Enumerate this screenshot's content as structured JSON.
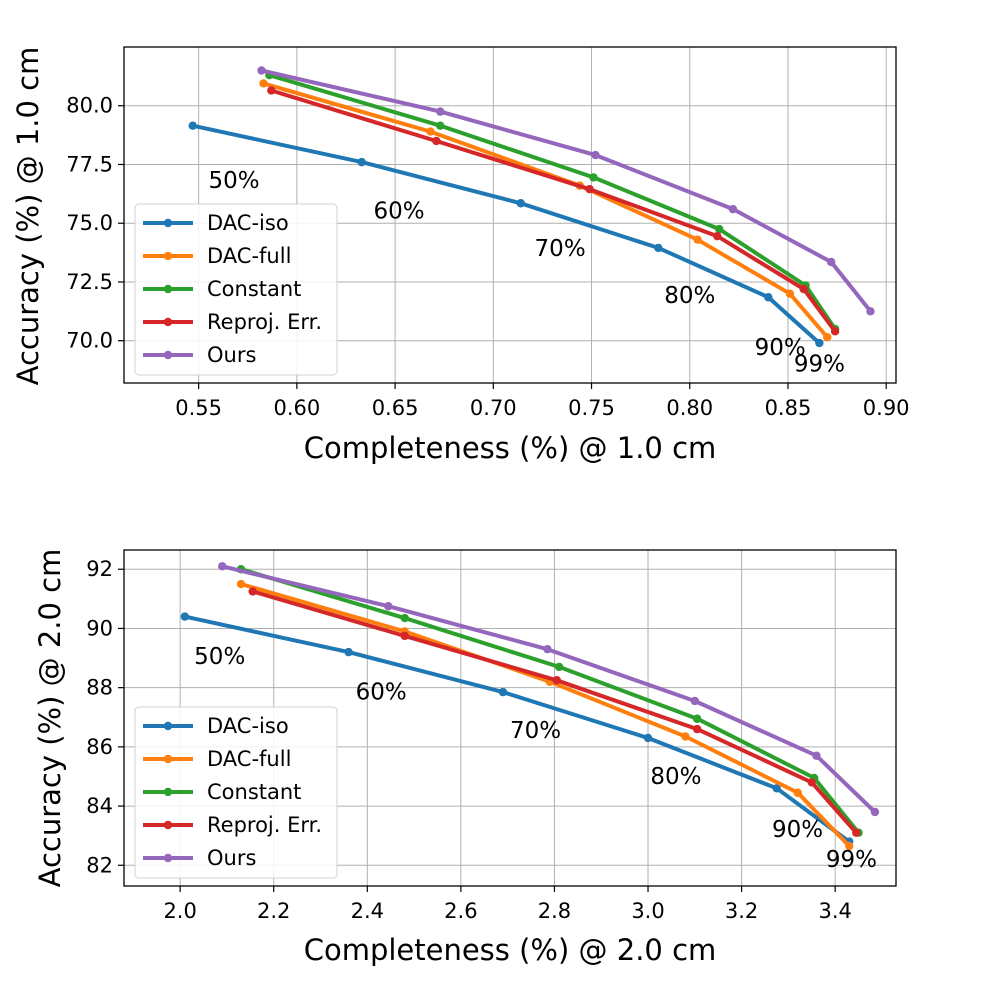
{
  "colors": {
    "DAC-iso": "#1f77b4",
    "DAC-full": "#ff7f0e",
    "Constant": "#2ca02c",
    "Reproj. Err.": "#d62728",
    "Ours": "#9467bd"
  },
  "chart_data": [
    {
      "type": "line",
      "xlabel": "Completeness (%) @ 1.0 cm",
      "ylabel": "Accuracy (%) @ 1.0 cm",
      "xlim": [
        0.512,
        0.905
      ],
      "ylim": [
        68.2,
        82.5
      ],
      "xticks": [
        0.55,
        0.6,
        0.65,
        0.7,
        0.75,
        0.8,
        0.85,
        0.9
      ],
      "xtick_labels": [
        "0.55",
        "0.60",
        "0.65",
        "0.70",
        "0.75",
        "0.80",
        "0.85",
        "0.90"
      ],
      "yticks": [
        70.0,
        72.5,
        75.0,
        77.5,
        80.0
      ],
      "ytick_labels": [
        "70.0",
        "72.5",
        "75.0",
        "77.5",
        "80.0"
      ],
      "grid": true,
      "legend": "lower-left",
      "series": [
        {
          "name": "DAC-iso",
          "x": [
            0.547,
            0.633,
            0.714,
            0.784,
            0.84,
            0.866
          ],
          "y": [
            79.15,
            77.6,
            75.85,
            73.95,
            71.85,
            69.9
          ]
        },
        {
          "name": "DAC-full",
          "x": [
            0.583,
            0.668,
            0.744,
            0.804,
            0.851,
            0.87
          ],
          "y": [
            80.95,
            78.9,
            76.6,
            74.3,
            72.0,
            70.15
          ]
        },
        {
          "name": "Constant",
          "x": [
            0.586,
            0.673,
            0.751,
            0.815,
            0.859,
            0.874
          ],
          "y": [
            81.3,
            79.15,
            76.95,
            74.75,
            72.35,
            70.5
          ]
        },
        {
          "name": "Reproj. Err.",
          "x": [
            0.587,
            0.671,
            0.749,
            0.814,
            0.858,
            0.874
          ],
          "y": [
            80.65,
            78.5,
            76.45,
            74.45,
            72.2,
            70.4
          ]
        },
        {
          "name": "Ours",
          "x": [
            0.582,
            0.673,
            0.752,
            0.822,
            0.872,
            0.892
          ],
          "y": [
            81.5,
            79.75,
            77.9,
            75.6,
            73.35,
            71.25
          ]
        }
      ],
      "annotations": [
        {
          "text": "50%",
          "x": 0.555,
          "y": 76.5
        },
        {
          "text": "60%",
          "x": 0.639,
          "y": 75.2
        },
        {
          "text": "70%",
          "x": 0.721,
          "y": 73.6
        },
        {
          "text": "80%",
          "x": 0.787,
          "y": 71.6
        },
        {
          "text": "90%",
          "x": 0.833,
          "y": 69.4
        },
        {
          "text": "99%",
          "x": 0.853,
          "y": 68.7
        }
      ]
    },
    {
      "type": "line",
      "xlabel": "Completeness (%) @ 2.0 cm",
      "ylabel": "Accuracy (%) @ 2.0 cm",
      "xlim": [
        1.88,
        3.53
      ],
      "ylim": [
        81.3,
        92.65
      ],
      "xticks": [
        2.0,
        2.2,
        2.4,
        2.6,
        2.8,
        3.0,
        3.2,
        3.4
      ],
      "xtick_labels": [
        "2.0",
        "2.2",
        "2.4",
        "2.6",
        "2.8",
        "3.0",
        "3.2",
        "3.4"
      ],
      "yticks": [
        82,
        84,
        86,
        88,
        90,
        92
      ],
      "ytick_labels": [
        "82",
        "84",
        "86",
        "88",
        "90",
        "92"
      ],
      "grid": true,
      "legend": "lower-left",
      "series": [
        {
          "name": "DAC-iso",
          "x": [
            2.01,
            2.36,
            2.69,
            3.0,
            3.275,
            3.43
          ],
          "y": [
            90.4,
            89.2,
            87.85,
            86.3,
            84.6,
            82.8
          ]
        },
        {
          "name": "DAC-full",
          "x": [
            2.13,
            2.48,
            2.79,
            3.08,
            3.32,
            3.43
          ],
          "y": [
            91.5,
            89.9,
            88.2,
            86.35,
            84.45,
            82.65
          ]
        },
        {
          "name": "Constant",
          "x": [
            2.13,
            2.48,
            2.81,
            3.105,
            3.355,
            3.45
          ],
          "y": [
            92.0,
            90.35,
            88.7,
            86.95,
            84.95,
            83.1
          ]
        },
        {
          "name": "Reproj. Err.",
          "x": [
            2.155,
            2.48,
            2.805,
            3.105,
            3.35,
            3.445
          ],
          "y": [
            91.25,
            89.75,
            88.25,
            86.6,
            84.8,
            83.1
          ]
        },
        {
          "name": "Ours",
          "x": [
            2.09,
            2.445,
            2.785,
            3.1,
            3.36,
            3.485
          ],
          "y": [
            92.1,
            90.75,
            89.3,
            87.55,
            85.7,
            83.8
          ]
        }
      ],
      "annotations": [
        {
          "text": "50%",
          "x": 2.03,
          "y": 88.8
        },
        {
          "text": "60%",
          "x": 2.375,
          "y": 87.6
        },
        {
          "text": "70%",
          "x": 2.705,
          "y": 86.3
        },
        {
          "text": "80%",
          "x": 3.005,
          "y": 84.75
        },
        {
          "text": "90%",
          "x": 3.265,
          "y": 82.95
        },
        {
          "text": "99%",
          "x": 3.38,
          "y": 81.95
        }
      ]
    }
  ]
}
